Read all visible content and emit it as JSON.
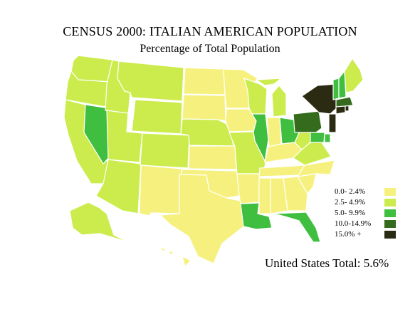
{
  "title": "CENSUS 2000: ITALIAN AMERICAN POPULATION",
  "subtitle": "Percentage of Total Population",
  "total_text": "United States Total: 5.6%",
  "colors": {
    "band_0_2_4": "#f6f17e",
    "band_2_5_4_9": "#cbec4c",
    "band_5_0_9_9": "#3fbe3f",
    "band_10_0_14_9": "#356b1d",
    "band_15_plus": "#2b2a12",
    "border": "#ffffff",
    "background": "#ffffff"
  },
  "legend": [
    {
      "label": "0.0- 2.4%",
      "color": "#f6f17e"
    },
    {
      "label": "2.5- 4.9%",
      "color": "#cbec4c"
    },
    {
      "label": "5.0- 9.9%",
      "color": "#3fbe3f"
    },
    {
      "label": "10.0-14.9%",
      "color": "#356b1d"
    },
    {
      "label": "15.0% +",
      "color": "#2b2a12"
    }
  ],
  "states": [
    {
      "name": "WA",
      "band": 1
    },
    {
      "name": "OR",
      "band": 1
    },
    {
      "name": "CA",
      "band": 1
    },
    {
      "name": "NV",
      "band": 2
    },
    {
      "name": "ID",
      "band": 1
    },
    {
      "name": "MT",
      "band": 1
    },
    {
      "name": "WY",
      "band": 1
    },
    {
      "name": "UT",
      "band": 1
    },
    {
      "name": "AZ",
      "band": 1
    },
    {
      "name": "CO",
      "band": 1
    },
    {
      "name": "NM",
      "band": 0
    },
    {
      "name": "ND",
      "band": 0
    },
    {
      "name": "SD",
      "band": 0
    },
    {
      "name": "NE",
      "band": 1
    },
    {
      "name": "KS",
      "band": 0
    },
    {
      "name": "OK",
      "band": 0
    },
    {
      "name": "TX",
      "band": 0
    },
    {
      "name": "MN",
      "band": 0
    },
    {
      "name": "IA",
      "band": 0
    },
    {
      "name": "MO",
      "band": 1
    },
    {
      "name": "AR",
      "band": 0
    },
    {
      "name": "LA",
      "band": 2
    },
    {
      "name": "WI",
      "band": 1
    },
    {
      "name": "IL",
      "band": 2
    },
    {
      "name": "MI",
      "band": 1
    },
    {
      "name": "IN",
      "band": 0
    },
    {
      "name": "OH",
      "band": 2
    },
    {
      "name": "KY",
      "band": 0
    },
    {
      "name": "TN",
      "band": 0
    },
    {
      "name": "MS",
      "band": 0
    },
    {
      "name": "AL",
      "band": 0
    },
    {
      "name": "GA",
      "band": 0
    },
    {
      "name": "FL",
      "band": 2
    },
    {
      "name": "SC",
      "band": 0
    },
    {
      "name": "NC",
      "band": 0
    },
    {
      "name": "VA",
      "band": 1
    },
    {
      "name": "WV",
      "band": 1
    },
    {
      "name": "PA",
      "band": 3
    },
    {
      "name": "NY",
      "band": 4
    },
    {
      "name": "NJ",
      "band": 4
    },
    {
      "name": "DE",
      "band": 2
    },
    {
      "name": "MD",
      "band": 2
    },
    {
      "name": "CT",
      "band": 4
    },
    {
      "name": "RI",
      "band": 4
    },
    {
      "name": "MA",
      "band": 3
    },
    {
      "name": "VT",
      "band": 2
    },
    {
      "name": "NH",
      "band": 2
    },
    {
      "name": "ME",
      "band": 1
    },
    {
      "name": "AK",
      "band": 1
    },
    {
      "name": "HI",
      "band": 0
    }
  ]
}
